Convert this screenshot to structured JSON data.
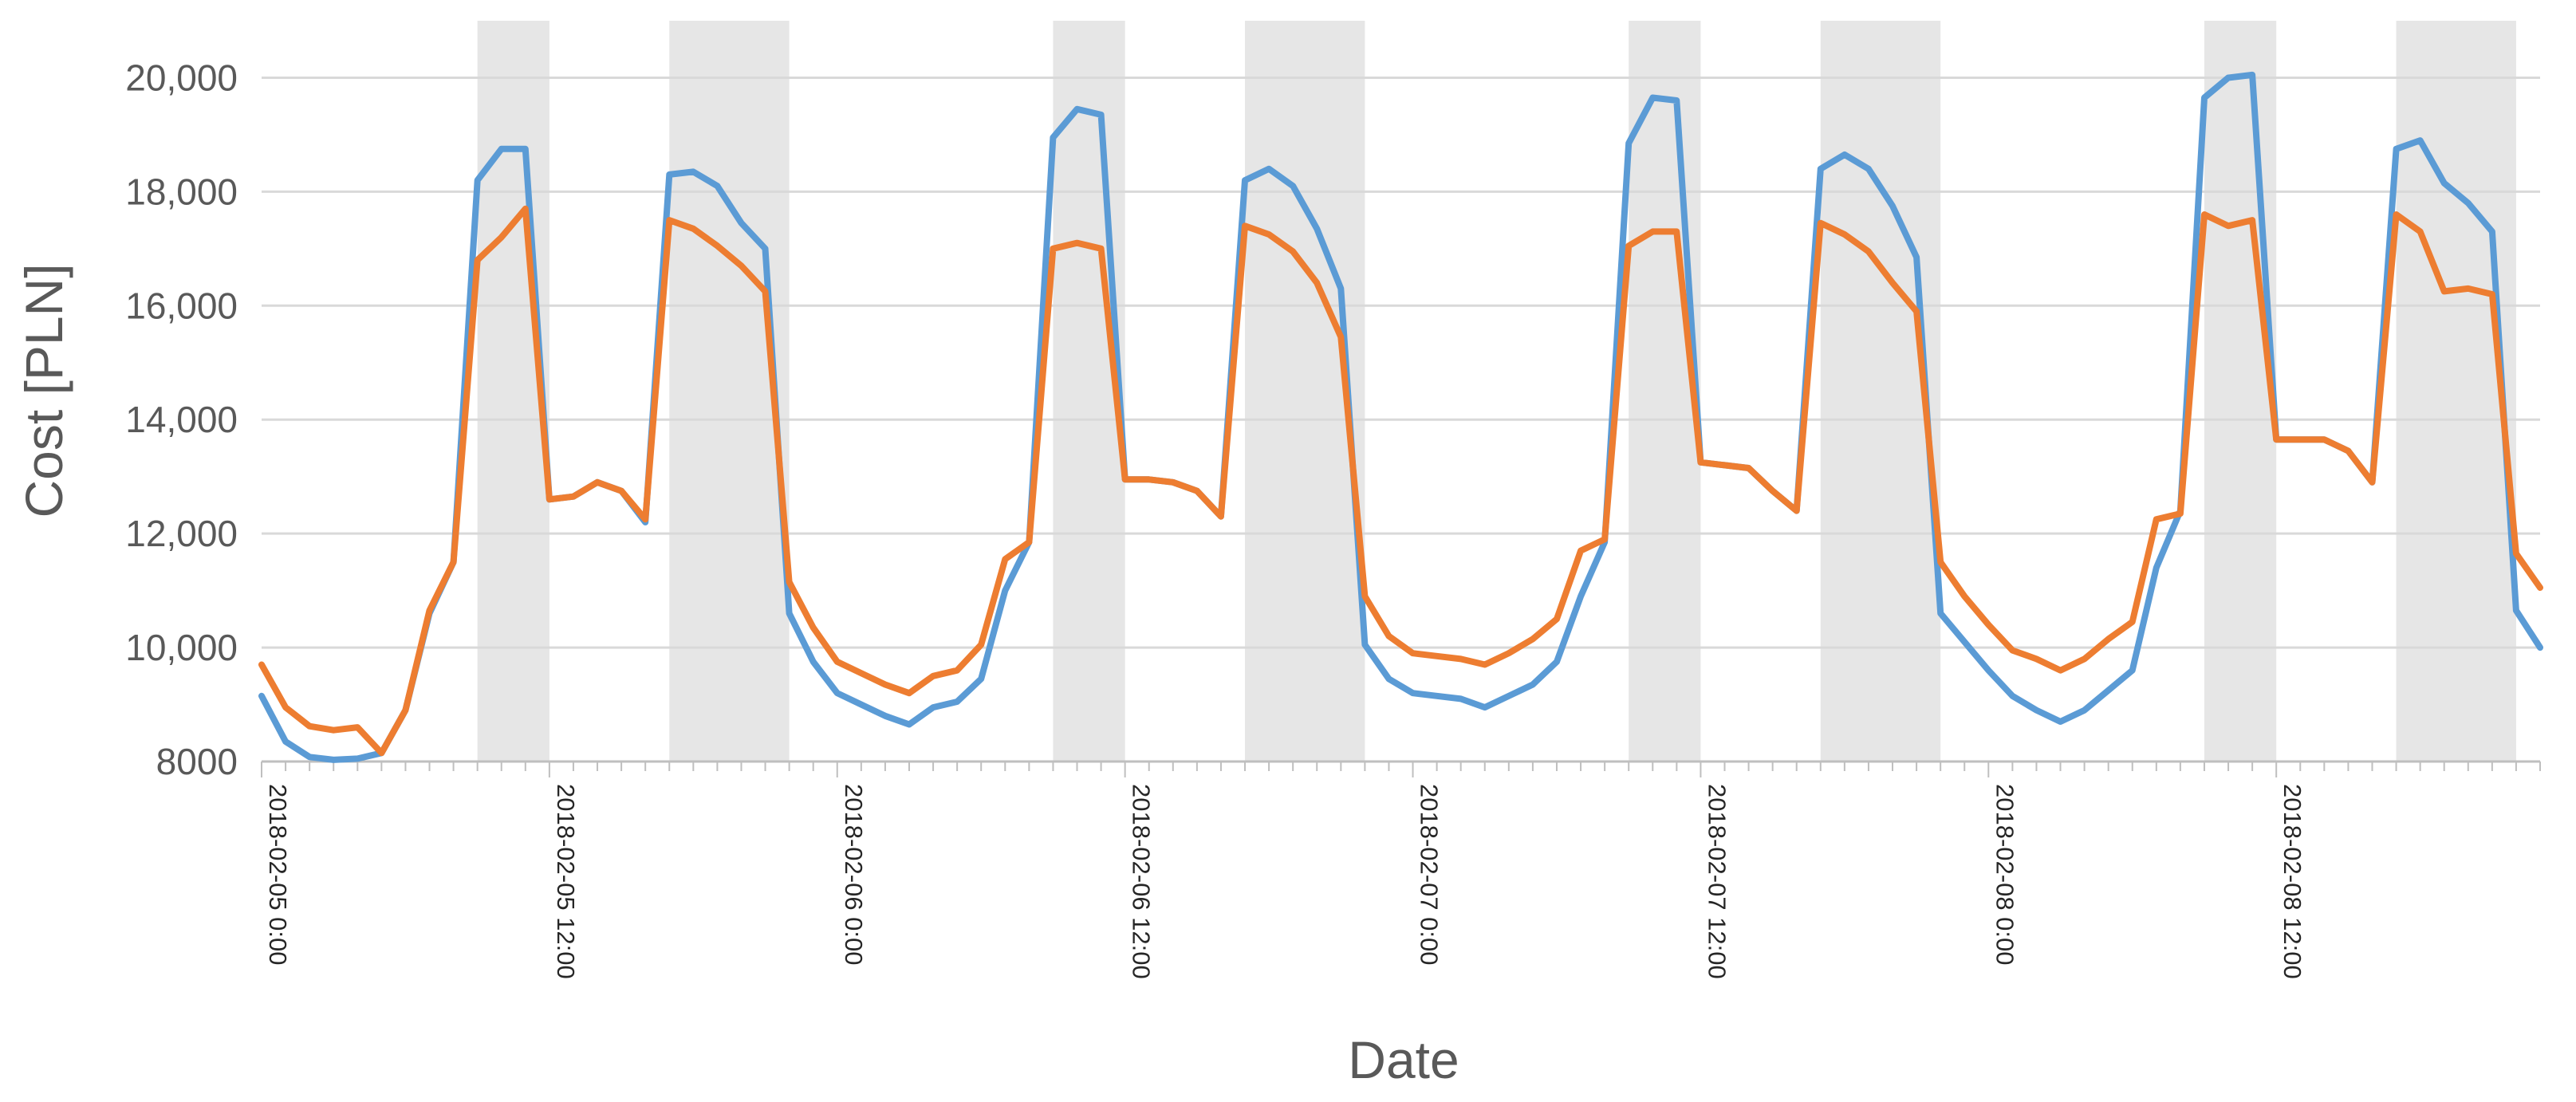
{
  "chart_data": {
    "type": "line",
    "title": "",
    "xlabel": "Date",
    "ylabel": "Cost [PLN]",
    "ylim": [
      8000,
      21000
    ],
    "y_ticks": [
      {
        "value": 8000,
        "label": "8000"
      },
      {
        "value": 10000,
        "label": "10,000"
      },
      {
        "value": 12000,
        "label": "12,000"
      },
      {
        "value": 14000,
        "label": "14,000"
      },
      {
        "value": 16000,
        "label": "16,000"
      },
      {
        "value": 18000,
        "label": "18,000"
      },
      {
        "value": 20000,
        "label": "20,000"
      }
    ],
    "x_start": "2018-02-05 0:00",
    "x_step_hours": 1,
    "x_ticks": [
      {
        "hour": 0,
        "label": "2018-02-05 0:00"
      },
      {
        "hour": 12,
        "label": "2018-02-05 12:00"
      },
      {
        "hour": 24,
        "label": "2018-02-06 0:00"
      },
      {
        "hour": 36,
        "label": "2018-02-06 12:00"
      },
      {
        "hour": 48,
        "label": "2018-02-07 0:00"
      },
      {
        "hour": 60,
        "label": "2018-02-07 12:00"
      },
      {
        "hour": 72,
        "label": "2018-02-08 0:00"
      },
      {
        "hour": 84,
        "label": "2018-02-08 12:00"
      }
    ],
    "shaded_periods": [
      {
        "start": "2018-02-05 9:00",
        "end": "2018-02-05 12:00"
      },
      {
        "start": "2018-02-05 17:00",
        "end": "2018-02-05 22:00"
      },
      {
        "start": "2018-02-06 9:00",
        "end": "2018-02-06 12:00"
      },
      {
        "start": "2018-02-06 17:00",
        "end": "2018-02-06 22:00"
      },
      {
        "start": "2018-02-07 9:00",
        "end": "2018-02-07 12:00"
      },
      {
        "start": "2018-02-07 17:00",
        "end": "2018-02-07 22:00"
      },
      {
        "start": "2018-02-08 9:00",
        "end": "2018-02-08 12:00"
      },
      {
        "start": "2018-02-08 17:00",
        "end": "2018-02-08 22:00"
      }
    ],
    "grid": "horizontal",
    "legend": "none",
    "series": [
      {
        "color": "#5B9BD5",
        "values": [
          9150,
          8350,
          8080,
          8030,
          8050,
          8150,
          8900,
          10600,
          11500,
          18200,
          18750,
          18750,
          12600,
          12650,
          12900,
          12750,
          12200,
          18300,
          18350,
          18100,
          17450,
          17000,
          10600,
          9750,
          9200,
          9000,
          8800,
          8650,
          8950,
          9050,
          9450,
          11000,
          11850,
          18950,
          19450,
          19350,
          12950,
          12950,
          12900,
          12750,
          12300,
          18200,
          18400,
          18100,
          17350,
          16300,
          10050,
          9450,
          9200,
          9150,
          9100,
          8950,
          9150,
          9350,
          9750,
          10900,
          11850,
          18850,
          19650,
          19600,
          13250,
          13200,
          13150,
          12750,
          12400,
          18400,
          18650,
          18400,
          17750,
          16850,
          10600,
          10100,
          9600,
          9150,
          8900,
          8700,
          8900,
          9250,
          9600,
          11400,
          12400,
          19650,
          20000,
          20050,
          13650,
          13650,
          13650,
          13450,
          12900,
          18750,
          18900,
          18150,
          17800,
          17300,
          10650,
          10000
        ],
        "values_note": ""
      },
      {
        "color": "#ED7D31",
        "values": [
          9700,
          8950,
          8620,
          8550,
          8600,
          8150,
          8900,
          10650,
          11500,
          16800,
          17200,
          17700,
          12600,
          12650,
          12900,
          12750,
          12250,
          17500,
          17350,
          17050,
          16700,
          16250,
          11150,
          10350,
          9750,
          9550,
          9350,
          9200,
          9500,
          9600,
          10050,
          11550,
          11850,
          17000,
          17100,
          17000,
          12950,
          12950,
          12900,
          12750,
          12300,
          17400,
          17250,
          16950,
          16400,
          15450,
          10900,
          10200,
          9900,
          9850,
          9800,
          9700,
          9900,
          10150,
          10500,
          11700,
          11900,
          17050,
          17300,
          17300,
          13250,
          13200,
          13150,
          12750,
          12400,
          17450,
          17250,
          16950,
          16400,
          15900,
          11500,
          10900,
          10400,
          9950,
          9800,
          9600,
          9800,
          10150,
          10450,
          12250,
          12350,
          17600,
          17400,
          17500,
          13650,
          13650,
          13650,
          13450,
          12900,
          17600,
          17300,
          16250,
          16300,
          16200,
          11650,
          11050
        ],
        "values_note": ""
      }
    ]
  }
}
